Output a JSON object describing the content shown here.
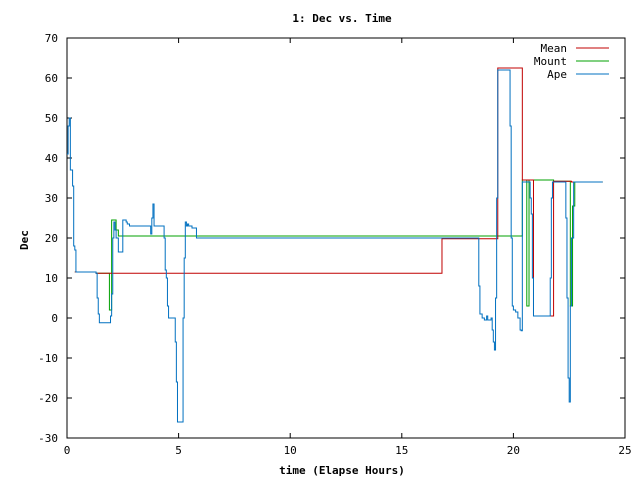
{
  "chart_data": {
    "type": "line",
    "title": "1: Dec vs. Time",
    "xlabel": "time (Elapse Hours)",
    "ylabel": "Dec",
    "xlim": [
      0,
      25
    ],
    "ylim": [
      -30,
      70
    ],
    "xticks": [
      0,
      5,
      10,
      15,
      20,
      25
    ],
    "yticks": [
      -30,
      -20,
      -10,
      0,
      10,
      20,
      30,
      40,
      50,
      60,
      70
    ],
    "grid": false,
    "legend_position": "top-right",
    "series": [
      {
        "name": "Mean",
        "color": "#c00000",
        "points": [
          [
            0.35,
            11.5
          ],
          [
            1.25,
            11.5
          ],
          [
            1.3,
            11.2
          ],
          [
            16.8,
            19.8
          ],
          [
            18.4,
            19.8
          ],
          [
            19.3,
            62.5
          ],
          [
            19.8,
            62.5
          ],
          [
            20.4,
            34.5
          ],
          [
            20.7,
            34.5
          ],
          [
            20.9,
            0.5
          ],
          [
            21.6,
            0.5
          ],
          [
            21.8,
            34.2
          ],
          [
            22.3,
            34.2
          ],
          [
            22.6,
            34.0
          ],
          [
            24.0,
            34.0
          ]
        ]
      },
      {
        "name": "Mount",
        "color": "#00a000",
        "points": [
          [
            0.35,
            11.5
          ],
          [
            1.25,
            11.5
          ],
          [
            1.3,
            11.2
          ],
          [
            1.9,
            2
          ],
          [
            2.0,
            24.5
          ],
          [
            2.1,
            24.5
          ],
          [
            2.2,
            22
          ],
          [
            2.3,
            20.5
          ],
          [
            20.4,
            34.5
          ],
          [
            20.6,
            3
          ],
          [
            20.7,
            34.5
          ],
          [
            21.8,
            34.2
          ],
          [
            22.3,
            34.2
          ],
          [
            22.55,
            3
          ],
          [
            22.65,
            28
          ],
          [
            22.75,
            34
          ],
          [
            24.0,
            34.0
          ]
        ]
      },
      {
        "name": "Ape",
        "color": "#0070c0",
        "points": [
          [
            0.0,
            41
          ],
          [
            0.05,
            48
          ],
          [
            0.1,
            50
          ],
          [
            0.15,
            37
          ],
          [
            0.2,
            37
          ],
          [
            0.25,
            33
          ],
          [
            0.3,
            18
          ],
          [
            0.35,
            17
          ],
          [
            0.4,
            11.5
          ],
          [
            1.25,
            11.5
          ],
          [
            1.3,
            11.2
          ],
          [
            1.35,
            5
          ],
          [
            1.4,
            1
          ],
          [
            1.45,
            -1.2
          ],
          [
            1.9,
            -1.2
          ],
          [
            1.95,
            0.5
          ],
          [
            2.0,
            6
          ],
          [
            2.05,
            20
          ],
          [
            2.1,
            24
          ],
          [
            2.15,
            22
          ],
          [
            2.2,
            20
          ],
          [
            2.3,
            16.5
          ],
          [
            2.4,
            16.5
          ],
          [
            2.5,
            24.5
          ],
          [
            2.6,
            24.5
          ],
          [
            2.65,
            24
          ],
          [
            2.7,
            23.5
          ],
          [
            2.8,
            23
          ],
          [
            3.7,
            23
          ],
          [
            3.75,
            21
          ],
          [
            3.8,
            25
          ],
          [
            3.85,
            28.5
          ],
          [
            3.9,
            23
          ],
          [
            4.3,
            23
          ],
          [
            4.35,
            20
          ],
          [
            4.4,
            12
          ],
          [
            4.45,
            10
          ],
          [
            4.5,
            3
          ],
          [
            4.55,
            0
          ],
          [
            4.8,
            0
          ],
          [
            4.85,
            -6
          ],
          [
            4.9,
            -16
          ],
          [
            4.95,
            -26
          ],
          [
            5.15,
            -26
          ],
          [
            5.2,
            0
          ],
          [
            5.25,
            15
          ],
          [
            5.3,
            24
          ],
          [
            5.35,
            23
          ],
          [
            5.4,
            23.5
          ],
          [
            5.45,
            23
          ],
          [
            5.5,
            23
          ],
          [
            5.6,
            22.5
          ],
          [
            5.75,
            22.5
          ],
          [
            5.8,
            20
          ],
          [
            18.4,
            20
          ],
          [
            18.45,
            8
          ],
          [
            18.5,
            1
          ],
          [
            18.6,
            0
          ],
          [
            18.7,
            -0.5
          ],
          [
            18.8,
            0.5
          ],
          [
            18.85,
            -0.5
          ],
          [
            19.0,
            0
          ],
          [
            19.05,
            -3
          ],
          [
            19.1,
            -6
          ],
          [
            19.15,
            -8
          ],
          [
            19.2,
            5
          ],
          [
            19.25,
            30
          ],
          [
            19.3,
            62
          ],
          [
            19.8,
            62
          ],
          [
            19.85,
            48
          ],
          [
            19.9,
            20
          ],
          [
            19.95,
            3
          ],
          [
            20.0,
            2
          ],
          [
            20.1,
            1.5
          ],
          [
            20.2,
            0
          ],
          [
            20.3,
            -3
          ],
          [
            20.35,
            -3.2
          ],
          [
            20.4,
            34
          ],
          [
            20.7,
            34
          ],
          [
            20.75,
            30
          ],
          [
            20.8,
            26
          ],
          [
            20.85,
            10
          ],
          [
            20.9,
            0.5
          ],
          [
            21.6,
            0.5
          ],
          [
            21.65,
            10
          ],
          [
            21.7,
            30
          ],
          [
            21.75,
            34
          ],
          [
            22.3,
            34
          ],
          [
            22.35,
            25
          ],
          [
            22.4,
            5
          ],
          [
            22.45,
            -15
          ],
          [
            22.5,
            -21
          ],
          [
            22.55,
            3
          ],
          [
            22.6,
            20
          ],
          [
            22.7,
            34
          ],
          [
            24.0,
            34
          ]
        ]
      }
    ]
  }
}
